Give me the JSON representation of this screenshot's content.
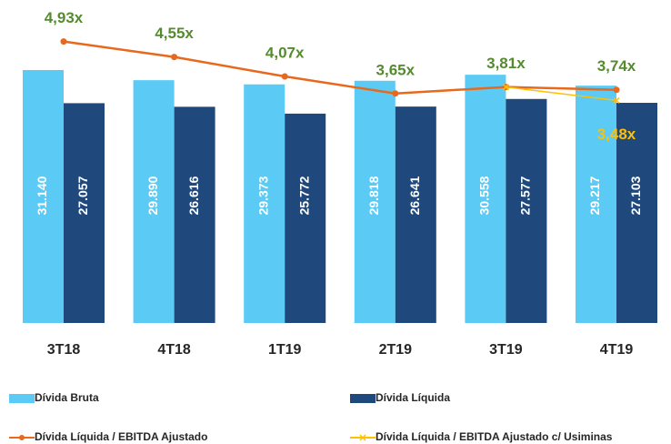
{
  "chart_data": {
    "type": "bar-line",
    "categories": [
      "3T18",
      "4T18",
      "1T19",
      "2T19",
      "3T19",
      "4T19"
    ],
    "series": [
      {
        "name": "Dívida Bruta",
        "type": "bar",
        "color": "#5BCBF5",
        "values": [
          31140,
          29890,
          29373,
          29818,
          30558,
          29217
        ],
        "value_labels": [
          "31.140",
          "29.890",
          "29.373",
          "29.818",
          "30.558",
          "29.217"
        ]
      },
      {
        "name": "Dívida Líquida",
        "type": "bar",
        "color": "#1F497D",
        "values": [
          27057,
          26616,
          25772,
          26641,
          27577,
          27103
        ],
        "value_labels": [
          "27.057",
          "26.616",
          "25.772",
          "26.641",
          "27.577",
          "27.103"
        ]
      },
      {
        "name": "Dívida Líquida / EBITDA Ajustado",
        "type": "line",
        "axis": "y2",
        "color": "#E8691C",
        "marker": "circle",
        "label_color": "#558B2F",
        "values": [
          4.93,
          4.55,
          4.07,
          3.65,
          3.81,
          3.74
        ],
        "value_labels": [
          "4,93x",
          "4,55x",
          "4,07x",
          "3,65x",
          "3,81x",
          "3,74x"
        ]
      },
      {
        "name": "Dívida Líquida / EBITDA Ajustado c/ Usiminas",
        "type": "line",
        "axis": "y2",
        "color": "#FFC000",
        "marker": "x",
        "label_color": "#FFC000",
        "values": [
          null,
          null,
          null,
          null,
          3.81,
          3.48
        ],
        "value_labels": [
          null,
          null,
          null,
          null,
          null,
          "3,48x"
        ]
      }
    ],
    "ylim": [
      0,
      35000
    ],
    "y2lim": [
      -2,
      5
    ]
  }
}
